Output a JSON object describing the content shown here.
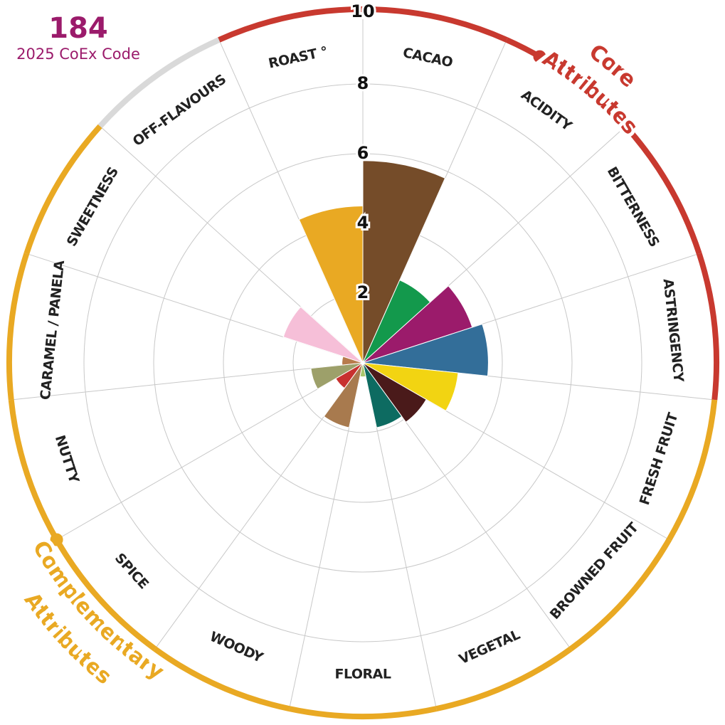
{
  "chart_data": {
    "type": "polar-bar",
    "title": "184",
    "subtitle": "2025 CoEx Code",
    "categories": [
      "CACAO",
      "ACIDITY",
      "BITTERNESS",
      "ASTRINGENCY",
      "FRESH FRUIT",
      "BROWNED FRUIT",
      "VEGETAL",
      "FLORAL",
      "WOODY",
      "SPICE",
      "NUTTY",
      "CARAMEL / PANELA",
      "SWEETNESS",
      "OFF-FLAVOURS",
      "ROAST °"
    ],
    "values": [
      5.8,
      2.6,
      3.3,
      3.6,
      2.75,
      2.1,
      1.9,
      0.4,
      1.9,
      0.9,
      1.5,
      0.6,
      2.4,
      0,
      4.5
    ],
    "colors": [
      "#754c29",
      "#13994c",
      "#9b1b6b",
      "#336e99",
      "#f2d412",
      "#4a1a1a",
      "#0d6b61",
      "#a8c66c",
      "#a87a4e",
      "#c8312f",
      "#9da06a",
      "#b87b4c",
      "#f6bfd8",
      "#d9d9d9",
      "#e9a923"
    ],
    "ring_colors": [
      "#c8392f",
      "#c8392f",
      "#c8392f",
      "#c8392f",
      "#e9a923",
      "#e9a923",
      "#e9a923",
      "#e9a923",
      "#e9a923",
      "#e9a923",
      "#e9a923",
      "#e9a923",
      "#e9a923",
      "#d9d9d9",
      "#c8392f"
    ],
    "groups": [
      {
        "lines": [
          "Core",
          "Attributes"
        ],
        "color": "#c8392f"
      },
      {
        "lines": [
          "Complementary",
          "Attributes"
        ],
        "color": "#e9a923"
      }
    ],
    "rlim": [
      0,
      10
    ],
    "rticks": [
      2,
      4,
      6,
      8,
      10
    ],
    "grid": true
  }
}
